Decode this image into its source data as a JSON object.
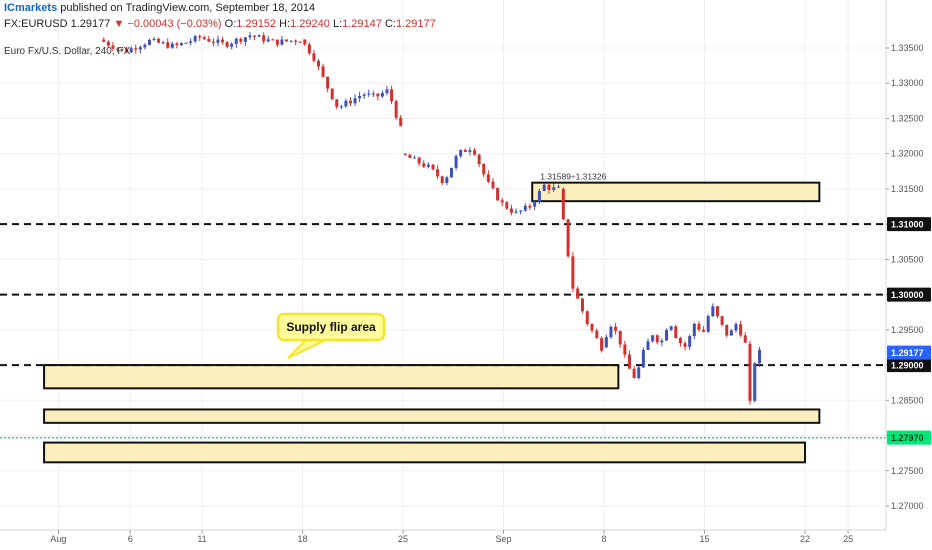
{
  "header": {
    "publisher": "ICmarkets",
    "published_text": " published on TradingView.com, September 18, 2014",
    "symbol": "FX:EURUSD",
    "last": "1.29177",
    "change_arrow": "▼",
    "change": "−0.00043 (−0.03%)",
    "o_label": "O:",
    "o_value": "1.29152",
    "h_label": "H:",
    "h_value": "1.29240",
    "l_label": "L:",
    "l_value": "1.29147",
    "c_label": "C:",
    "c_value": "1.29177",
    "instrument": "Euro Fx/U.S. Dollar, 240, FX"
  },
  "colors": {
    "up": "#3f51b5",
    "down": "#d32f2f",
    "zone_fill": "#fdeebd",
    "zone_border": "#111111",
    "last_price_tag": "#2962ff",
    "green_line": "#00e676",
    "grid": "#eef0f3",
    "brand": "#1565c0"
  },
  "chart_data": {
    "type": "candlestick",
    "title": "Euro Fx/U.S. Dollar, 240, FX",
    "y_ticks": [
      1.335,
      1.33,
      1.325,
      1.32,
      1.315,
      1.31,
      1.305,
      1.3,
      1.295,
      1.29,
      1.285,
      1.28,
      1.275,
      1.27
    ],
    "y_tick_labels": [
      "1.33500",
      "1.33000",
      "1.32500",
      "1.32000",
      "1.31500",
      "1.31000",
      "1.30500",
      "1.30000",
      "1.29500",
      "1.29000",
      "1.28500",
      "1.28000",
      "1.27500",
      "1.27000"
    ],
    "ylim": [
      1.2665,
      1.3378
    ],
    "x_ticks": [
      "Aug",
      "6",
      "11",
      "18",
      "25",
      "Sep",
      "8",
      "15",
      "22",
      "25"
    ],
    "price_segments": [
      {
        "from": "Aug 4",
        "to": "Aug 18",
        "path": [
          1.3362,
          1.3345,
          1.336,
          1.3352,
          1.3365,
          1.3355,
          1.3368,
          1.3358,
          1.3362
        ]
      },
      {
        "from": "Aug 18",
        "to": "Aug 25",
        "path": [
          1.3362,
          1.334,
          1.33,
          1.3265,
          1.3275,
          1.3285,
          1.328,
          1.329,
          1.3235
        ]
      },
      {
        "from": "Aug 25",
        "to": "Sep 3",
        "path": [
          1.32,
          1.319,
          1.318,
          1.316,
          1.32,
          1.321,
          1.316,
          1.313,
          1.3115,
          1.3125
        ]
      },
      {
        "from": "Sep 3",
        "to": "Sep 5",
        "path": [
          1.3125,
          1.314,
          1.3155,
          1.315,
          1.315
        ]
      },
      {
        "from": "Sep 5",
        "to": "Sep 8",
        "path": [
          1.315,
          1.301,
          1.296,
          1.2925
        ]
      },
      {
        "from": "Sep 8",
        "to": "Sep 18",
        "path": [
          1.2925,
          1.296,
          1.294,
          1.29,
          1.288,
          1.292,
          1.2945,
          1.293,
          1.2965,
          1.2935,
          1.2925,
          1.296,
          1.2945,
          1.2985,
          1.296,
          1.294,
          1.296,
          1.293
        ]
      },
      {
        "from": "Sep 18",
        "to": "Sep 19",
        "path": [
          1.293,
          1.287,
          1.2845,
          1.288,
          1.2905,
          1.2915,
          1.2918
        ]
      }
    ],
    "horizontal_lines": [
      {
        "value": 1.31,
        "label": "1.31000",
        "style": "dashed"
      },
      {
        "value": 1.3,
        "label": "1.30000",
        "style": "dashed"
      },
      {
        "value": 1.29,
        "label": "1.29000",
        "style": "dashed"
      },
      {
        "value": 1.2797,
        "label": "1.27970",
        "style": "dotted-green"
      }
    ],
    "zones": [
      {
        "label": "1.31589÷1.31326",
        "top": 1.31589,
        "bottom": 1.31326,
        "from": "Sep 3",
        "to": "Sep 23"
      },
      {
        "top": 1.29,
        "bottom": 1.2867,
        "from": "Jul 31",
        "to": "Sep 9"
      },
      {
        "top": 1.2837,
        "bottom": 1.2818,
        "from": "Jul 31",
        "to": "Sep 23"
      },
      {
        "top": 1.279,
        "bottom": 1.2762,
        "from": "Jul 31",
        "to": "Sep 22"
      }
    ],
    "annotation": "Supply flip area",
    "last_price": {
      "value": 1.29177,
      "label": "1.29177"
    }
  }
}
